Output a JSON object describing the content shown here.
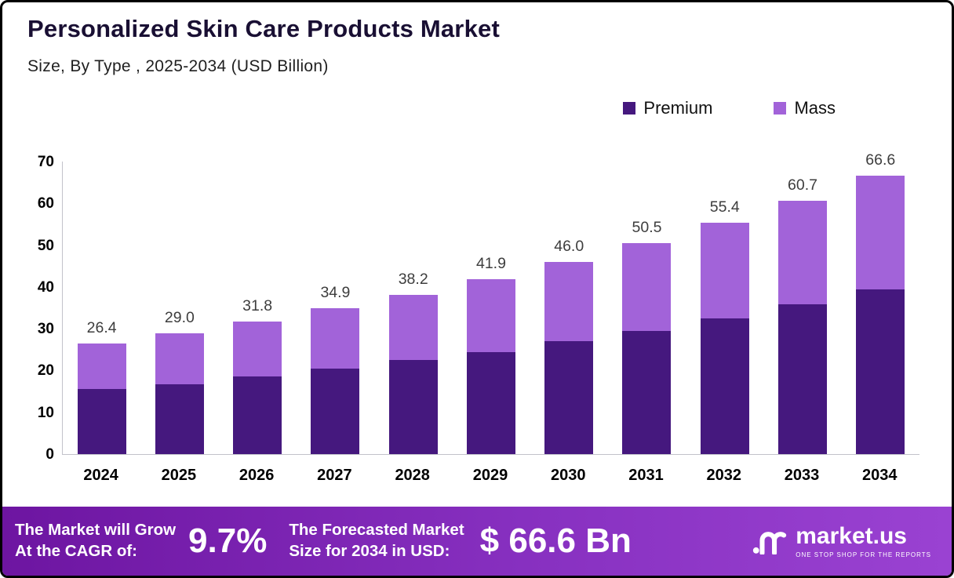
{
  "header": {
    "title": "Personalized Skin Care Products Market",
    "subtitle": "Size, By Type , 2025-2034 (USD Billion)"
  },
  "legend": [
    {
      "label": "Premium",
      "color": "#45187e"
    },
    {
      "label": "Mass",
      "color": "#a263d9"
    }
  ],
  "chart_data": {
    "type": "bar",
    "stacked": true,
    "title": "Personalized Skin Care Products Market",
    "subtitle": "Size, By Type , 2025-2034 (USD Billion)",
    "unit": "USD Billion",
    "categories": [
      "2024",
      "2025",
      "2026",
      "2027",
      "2028",
      "2029",
      "2030",
      "2031",
      "2032",
      "2033",
      "2034"
    ],
    "series": [
      {
        "name": "Premium",
        "color": "#45187e",
        "values": [
          15.5,
          16.8,
          18.6,
          20.5,
          22.6,
          24.5,
          27.0,
          29.5,
          32.5,
          35.8,
          39.4
        ]
      },
      {
        "name": "Mass",
        "color": "#a263d9",
        "values": [
          10.9,
          12.2,
          13.2,
          14.4,
          15.6,
          17.4,
          19.0,
          21.0,
          22.9,
          24.9,
          27.2
        ]
      }
    ],
    "totals": [
      26.4,
      29.0,
      31.8,
      34.9,
      38.2,
      41.9,
      46.0,
      50.5,
      55.4,
      60.7,
      66.6
    ],
    "ylim": [
      0,
      70
    ],
    "yticks": [
      0,
      10,
      20,
      30,
      40,
      50,
      60,
      70
    ],
    "grid": false,
    "legend_position": "top-right"
  },
  "footer": {
    "cagr_label_line1": "The Market will Grow",
    "cagr_label_line2": "At the CAGR of:",
    "cagr_value": "9.7%",
    "forecast_label_line1": "The Forecasted Market",
    "forecast_label_line2": "Size for 2034 in USD:",
    "forecast_value": "$ 66.6 Bn",
    "brand_name": "market.us",
    "brand_tagline": "ONE STOP SHOP FOR THE REPORTS"
  }
}
